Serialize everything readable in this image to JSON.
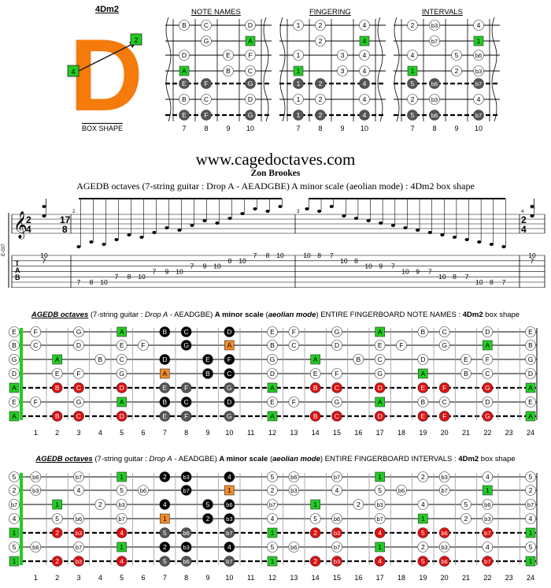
{
  "header": {
    "shape_name": "4Dm2",
    "big_letter": "D",
    "box_shape_label": "BOX SHAPE",
    "panel_titles": [
      "NOTE NAMES",
      "FINGERING",
      "INTERVALS"
    ],
    "fret_numbers": [
      "7",
      "8",
      "9",
      "10"
    ]
  },
  "site": {
    "url": "www.cagedoctaves.com",
    "author": "Zon Brookes",
    "subtitle": "AGEDB octaves (7-string guitar : Drop A - AEADGBE) A minor scale (aeolian mode) : 4Dm2 box shape"
  },
  "notation": {
    "tuning_label": "E-Gt7",
    "tab_label": [
      "T",
      "A",
      "B"
    ],
    "time_sig_start": [
      "2",
      "4"
    ],
    "time_sig_mid": [
      "17",
      "8"
    ],
    "time_sig_end": [
      "2",
      "4"
    ],
    "measure_numbers": [
      "2",
      "3",
      "4"
    ],
    "tab_numbers": [
      {
        "s": 1,
        "v": "10",
        "m": "a"
      },
      {
        "s": 2,
        "v": "7",
        "m": "a"
      },
      {
        "s": 6,
        "v": "7",
        "m": "b"
      },
      {
        "s": 6,
        "v": "8",
        "m": "b"
      },
      {
        "s": 6,
        "v": "10",
        "m": "b"
      },
      {
        "s": 5,
        "v": "7",
        "m": "b"
      },
      {
        "s": 5,
        "v": "8",
        "m": "b"
      },
      {
        "s": 5,
        "v": "10",
        "m": "b"
      },
      {
        "s": 4,
        "v": "7",
        "m": "b"
      },
      {
        "s": 4,
        "v": "9",
        "m": "b"
      },
      {
        "s": 4,
        "v": "10",
        "m": "b"
      },
      {
        "s": 3,
        "v": "7",
        "m": "b"
      },
      {
        "s": 3,
        "v": "9",
        "m": "b"
      },
      {
        "s": 3,
        "v": "10",
        "m": "b"
      },
      {
        "s": 2,
        "v": "8",
        "m": "b"
      },
      {
        "s": 2,
        "v": "10",
        "m": "b"
      },
      {
        "s": 1,
        "v": "7",
        "m": "b"
      },
      {
        "s": 1,
        "v": "8",
        "m": "b"
      },
      {
        "s": 1,
        "v": "10",
        "m": "b"
      },
      {
        "s": 1,
        "v": "10",
        "m": "c"
      },
      {
        "s": 1,
        "v": "8",
        "m": "c"
      },
      {
        "s": 1,
        "v": "7",
        "m": "c"
      },
      {
        "s": 2,
        "v": "10",
        "m": "c"
      },
      {
        "s": 2,
        "v": "8",
        "m": "c"
      },
      {
        "s": 3,
        "v": "10",
        "m": "c"
      },
      {
        "s": 3,
        "v": "9",
        "m": "c"
      },
      {
        "s": 3,
        "v": "7",
        "m": "c"
      },
      {
        "s": 4,
        "v": "10",
        "m": "c"
      },
      {
        "s": 4,
        "v": "9",
        "m": "c"
      },
      {
        "s": 4,
        "v": "7",
        "m": "c"
      },
      {
        "s": 5,
        "v": "10",
        "m": "c"
      },
      {
        "s": 5,
        "v": "8",
        "m": "c"
      },
      {
        "s": 5,
        "v": "7",
        "m": "c"
      },
      {
        "s": 6,
        "v": "10",
        "m": "c"
      },
      {
        "s": 6,
        "v": "8",
        "m": "c"
      },
      {
        "s": 6,
        "v": "7",
        "m": "c"
      },
      {
        "s": 1,
        "v": "10",
        "m": "d"
      },
      {
        "s": 2,
        "v": "7",
        "m": "d"
      }
    ]
  },
  "fingerboard_notes": {
    "title_parts": [
      "AGEDB octaves",
      " (7-string guitar : ",
      "Drop A",
      " - AEADGBE) ",
      "A minor scale",
      " (",
      "aeolian mode",
      ") ENTIRE FINGERBOARD NOTE NAMES : ",
      "4Dm2",
      " box shape"
    ],
    "open": [
      "E",
      "B",
      "G",
      "D",
      "A",
      "E",
      "A"
    ],
    "fret_labels": [
      "1",
      "2",
      "3",
      "4",
      "5",
      "6",
      "7",
      "8",
      "9",
      "10",
      "11",
      "12",
      "13",
      "14",
      "15",
      "16",
      "17",
      "18",
      "19",
      "20",
      "21",
      "22",
      "23",
      "24"
    ]
  },
  "fingerboard_intervals": {
    "title_parts": [
      "AGEDB octaves",
      " (7-string guitar : ",
      "Drop A",
      " - AEADGBE) ",
      "A minor scale",
      " (",
      "aeolian mode",
      ") ENTIRE FINGERBOARD INTERVALS : ",
      "4Dm2",
      " box shape"
    ],
    "open": [
      "5",
      "2",
      "b7",
      "4",
      "1",
      "5",
      "1"
    ],
    "fret_labels": [
      "1",
      "2",
      "3",
      "4",
      "5",
      "6",
      "7",
      "8",
      "9",
      "10",
      "11",
      "12",
      "13",
      "14",
      "15",
      "16",
      "17",
      "18",
      "19",
      "20",
      "21",
      "22",
      "23",
      "24"
    ]
  },
  "colors": {
    "orange": "#f47b0c",
    "green": "#22cc22",
    "red": "#dd1111",
    "dark": "#555555",
    "black": "#000000",
    "box_orange": "#f08c2a"
  }
}
